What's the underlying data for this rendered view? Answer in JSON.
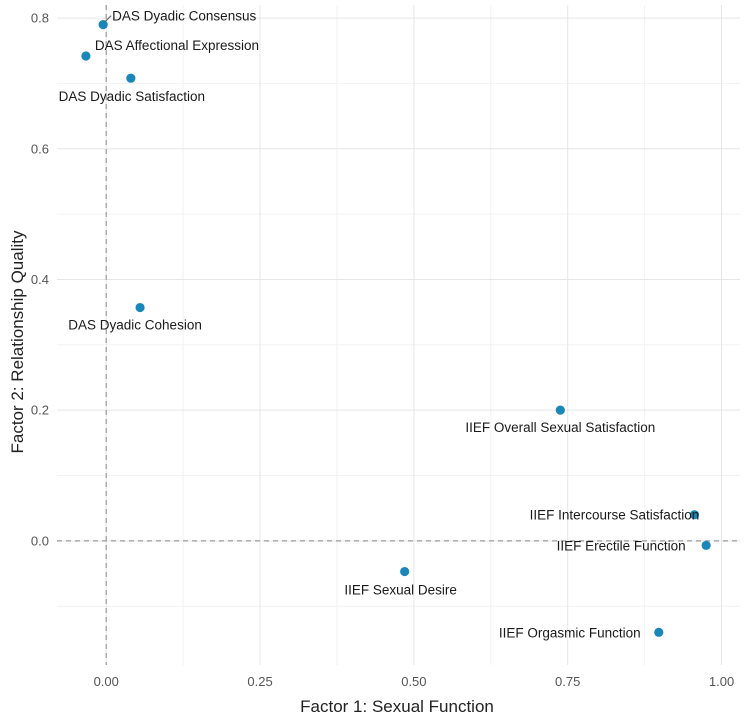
{
  "chart_data": {
    "type": "scatter",
    "title": "",
    "xlabel": "Factor 1: Sexual Function",
    "ylabel": "Factor 2: Relationship Quality",
    "xlim": [
      -0.08,
      1.03
    ],
    "ylim": [
      -0.19,
      0.82
    ],
    "x_ticks": [
      0.0,
      0.25,
      0.5,
      0.75,
      1.0
    ],
    "x_tick_labels": [
      "0.00",
      "0.25",
      "0.50",
      "0.75",
      "1.00"
    ],
    "y_ticks": [
      0.0,
      0.2,
      0.4,
      0.6,
      0.8
    ],
    "y_tick_labels": [
      "0.0",
      "0.2",
      "0.4",
      "0.6",
      "0.8"
    ],
    "grid": true,
    "reference_lines": {
      "x": 0,
      "y": 0,
      "style": "dashed"
    },
    "point_color": "#1a87b8",
    "points": [
      {
        "label": "DAS Dyadic Consensus",
        "x": -0.005,
        "y": 0.79
      },
      {
        "label": "DAS Affectional Expression",
        "x": -0.033,
        "y": 0.742
      },
      {
        "label": "DAS Dyadic Satisfaction",
        "x": 0.04,
        "y": 0.708
      },
      {
        "label": "DAS Dyadic Cohesion",
        "x": 0.055,
        "y": 0.357
      },
      {
        "label": "IIEF Overall Sexual Satisfaction",
        "x": 0.738,
        "y": 0.2
      },
      {
        "label": "IIEF Intercourse Satisfaction",
        "x": 0.956,
        "y": 0.04
      },
      {
        "label": "IIEF Erectile Function",
        "x": 0.975,
        "y": -0.007
      },
      {
        "label": "IIEF Sexual Desire",
        "x": 0.485,
        "y": -0.047
      },
      {
        "label": "IIEF Orgasmic Function",
        "x": 0.898,
        "y": -0.14
      }
    ]
  }
}
